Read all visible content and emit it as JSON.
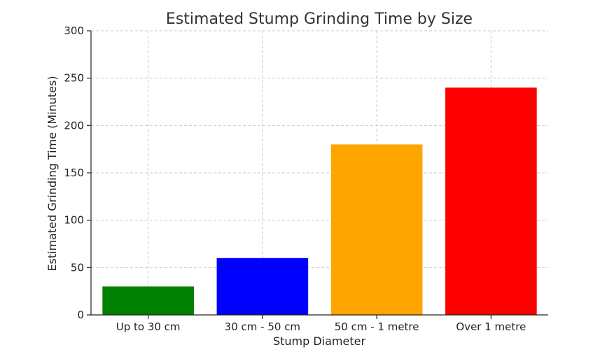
{
  "chart_data": {
    "type": "bar",
    "title": "Estimated Stump Grinding Time by Size",
    "xlabel": "Stump Diameter",
    "ylabel": "Estimated Grinding Time (Minutes)",
    "categories": [
      "Up to 30 cm",
      "30 cm - 50 cm",
      "50 cm - 1 metre",
      "Over 1 metre"
    ],
    "values": [
      30,
      60,
      180,
      240
    ],
    "colors": [
      "#008000",
      "#0000ff",
      "#ffa500",
      "#ff0000"
    ],
    "ylim": [
      0,
      300
    ],
    "yticks": [
      "0",
      "50",
      "100",
      "150",
      "200",
      "250",
      "300"
    ],
    "grid": true
  }
}
